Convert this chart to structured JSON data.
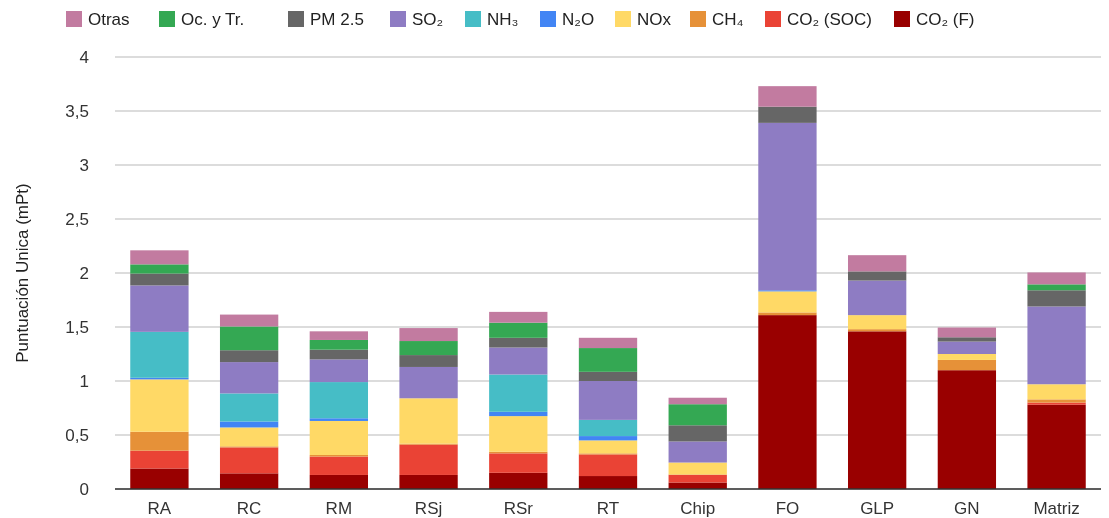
{
  "chart_data": {
    "type": "bar",
    "stacked": true,
    "ylabel": "Puntuación Unica (mPt)",
    "categories": [
      "RA",
      "RC",
      "RM",
      "RSj",
      "RSr",
      "RT",
      "Chip",
      "FO",
      "GLP",
      "GN",
      "Matriz"
    ],
    "ylim": [
      0,
      4
    ],
    "yticks": [
      0,
      {
        "value": 0.5,
        "label": "0,5"
      },
      1,
      {
        "value": 1.5,
        "label": "1,5"
      },
      2,
      {
        "value": 2.5,
        "label": "2,5"
      },
      3,
      {
        "value": 3.5,
        "label": "3,5"
      },
      4
    ],
    "grid": "y",
    "legend": "top",
    "series": [
      {
        "name": "CO₂ (F)",
        "color": "#990000",
        "values": [
          0.19,
          0.145,
          0.13,
          0.13,
          0.15,
          0.12,
          0.06,
          1.61,
          1.46,
          1.1,
          0.78
        ]
      },
      {
        "name": "CO₂ (SOC)",
        "color": "#ea4335",
        "values": [
          0.165,
          0.24,
          0.17,
          0.28,
          0.18,
          0.2,
          0.07,
          0,
          0,
          0,
          0.02
        ]
      },
      {
        "name": "CH₄",
        "color": "#e69138",
        "values": [
          0.175,
          0.01,
          0.015,
          0.01,
          0.015,
          0.01,
          0.005,
          0.025,
          0.02,
          0.095,
          0.03
        ]
      },
      {
        "name": "NOx",
        "color": "#ffd966",
        "values": [
          0.485,
          0.175,
          0.315,
          0.42,
          0.33,
          0.12,
          0.11,
          0.195,
          0.13,
          0.055,
          0.14
        ]
      },
      {
        "name": "N₂O",
        "color": "#4285f4",
        "values": [
          0.015,
          0.055,
          0.025,
          0,
          0.04,
          0.04,
          0,
          0.01,
          0,
          0,
          0
        ]
      },
      {
        "name": "NH₃",
        "color": "#46bdc6",
        "values": [
          0.425,
          0.26,
          0.335,
          0,
          0.345,
          0.15,
          0,
          0,
          0,
          0,
          0
        ]
      },
      {
        "name": "SO₂",
        "color": "#8e7cc3",
        "values": [
          0.43,
          0.29,
          0.21,
          0.29,
          0.25,
          0.36,
          0.195,
          1.55,
          0.32,
          0.115,
          0.72
        ]
      },
      {
        "name": "PM 2.5",
        "color": "#666666",
        "values": [
          0.11,
          0.11,
          0.09,
          0.11,
          0.09,
          0.085,
          0.15,
          0.15,
          0.085,
          0.04,
          0.15
        ]
      },
      {
        "name": "Oc. y Tr.",
        "color": "#34a853",
        "values": [
          0.085,
          0.22,
          0.09,
          0.13,
          0.14,
          0.22,
          0.195,
          0,
          0,
          0,
          0.055
        ]
      },
      {
        "name": "Otras",
        "color": "#c27ba0",
        "values": [
          0.13,
          0.11,
          0.08,
          0.12,
          0.1,
          0.095,
          0.06,
          0.19,
          0.15,
          0.09,
          0.11
        ]
      }
    ]
  }
}
